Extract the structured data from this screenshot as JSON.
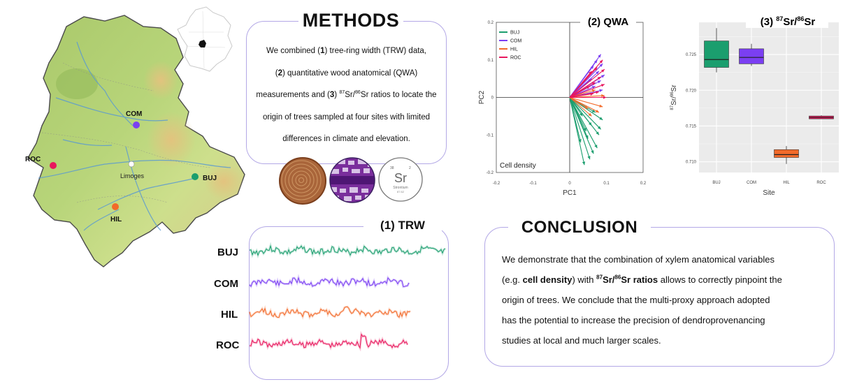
{
  "map": {
    "sites": [
      {
        "code": "COM",
        "color": "#7b3ff2"
      },
      {
        "code": "ROC",
        "color": "#e8175d"
      },
      {
        "code": "BUJ",
        "color": "#1b9e6e"
      },
      {
        "code": "HIL",
        "color": "#f26a2a"
      }
    ],
    "city": "Limoges"
  },
  "methods": {
    "heading": "METHODS",
    "line1_pre": "We combined (",
    "line1_b": "1",
    "line1_post": ") tree-ring width (TRW) data,",
    "line2_pre": "(",
    "line2_b": "2",
    "line2_post": ") quantitative wood anatomical (QWA)",
    "line3_pre": "measurements and (",
    "line3_b": "3",
    "line3_sup1": "87",
    "line3_mid": "Sr/",
    "line3_sup2": "86",
    "line3_post": "Sr ratios to locate the",
    "line4": "origin of trees sampled at four sites with limited",
    "line5": "differences in climate and elevation."
  },
  "strontium_icon": {
    "symbol": "Sr",
    "name": "Strontium",
    "num_tl": "38",
    "num_tr": "2",
    "mass": "87.62"
  },
  "trw": {
    "title": "(1) TRW",
    "labels": [
      "BUJ",
      "COM",
      "HIL",
      "ROC"
    ]
  },
  "chart_data": [
    {
      "type": "scatter",
      "title": "(2) QWA",
      "xlabel": "PC1",
      "ylabel": "PC2",
      "xlim": [
        -0.2,
        0.2
      ],
      "ylim": [
        -0.2,
        0.2
      ],
      "xticks": [
        "-0.2",
        "-0.1",
        "0",
        "0.1",
        "0.2"
      ],
      "yticks": [
        "0.2",
        "0.1",
        "0",
        "-0.1",
        "-0.2"
      ],
      "legend": [
        "BUJ",
        "COM",
        "HIL",
        "ROC"
      ],
      "legend_position": "top-left",
      "annotation": "Cell density",
      "series": [
        {
          "name": "BUJ",
          "color": "#1b9e6e",
          "vectors": [
            [
              0.04,
              -0.18
            ],
            [
              0.055,
              -0.165
            ],
            [
              0.065,
              -0.15
            ],
            [
              0.075,
              -0.135
            ],
            [
              0.03,
              -0.12
            ],
            [
              0.08,
              -0.1
            ],
            [
              0.045,
              -0.09
            ],
            [
              0.06,
              -0.075
            ],
            [
              0.09,
              -0.06
            ],
            [
              0.035,
              -0.05
            ],
            [
              0.07,
              -0.04
            ],
            [
              0.05,
              -0.11
            ],
            [
              0.085,
              -0.085
            ]
          ]
        },
        {
          "name": "COM",
          "color": "#7b3ff2",
          "vectors": [
            [
              0.085,
              0.115
            ],
            [
              0.075,
              0.1
            ],
            [
              0.09,
              0.09
            ],
            [
              0.065,
              0.085
            ],
            [
              0.08,
              0.07
            ],
            [
              0.095,
              0.06
            ],
            [
              0.06,
              0.05
            ],
            [
              0.085,
              0.045
            ],
            [
              0.07,
              0.03
            ],
            [
              0.09,
              0.02
            ]
          ]
        },
        {
          "name": "HIL",
          "color": "#f26a2a",
          "vectors": [
            [
              0.08,
              -0.04
            ],
            [
              0.06,
              -0.05
            ],
            [
              0.09,
              -0.025
            ],
            [
              0.05,
              -0.03
            ],
            [
              0.07,
              0.02
            ],
            [
              0.095,
              0.005
            ]
          ]
        },
        {
          "name": "ROC",
          "color": "#e8175d",
          "vectors": [
            [
              0.09,
              0.1
            ],
            [
              0.075,
              0.08
            ],
            [
              0.095,
              0.075
            ],
            [
              0.06,
              0.07
            ],
            [
              0.085,
              0.055
            ],
            [
              0.07,
              0.04
            ],
            [
              0.095,
              0.035
            ],
            [
              0.055,
              0.03
            ],
            [
              0.08,
              0.015
            ],
            [
              0.1,
              0.0
            ],
            [
              0.065,
              0.01
            ]
          ]
        }
      ]
    },
    {
      "type": "box",
      "title_pre": "(3) ",
      "title_sup1": "87",
      "title_mid": "Sr/",
      "title_sup2": "86",
      "title_post": "Sr",
      "xlabel": "Site",
      "ylabel_sup1": "87",
      "ylabel_mid": "Sr/",
      "ylabel_sup2": "86",
      "ylabel_post": "Sr",
      "categories": [
        "BUJ",
        "COM",
        "HIL",
        "ROC"
      ],
      "ylim": [
        0.7085,
        0.7295
      ],
      "yticks": [
        "0.725",
        "0.720",
        "0.715",
        "0.710"
      ],
      "boxes": [
        {
          "name": "BUJ",
          "color": "#1b9e6e",
          "min": 0.7225,
          "q1": 0.7232,
          "median": 0.7243,
          "q3": 0.7269,
          "max": 0.7287
        },
        {
          "name": "COM",
          "color": "#7b3ff2",
          "min": 0.7234,
          "q1": 0.7237,
          "median": 0.7246,
          "q3": 0.7258,
          "max": 0.7265
        },
        {
          "name": "HIL",
          "color": "#f26a2a",
          "min": 0.7097,
          "q1": 0.7106,
          "median": 0.711,
          "q3": 0.7117,
          "max": 0.7122
        },
        {
          "name": "ROC",
          "color": "#e8175d",
          "min": 0.716,
          "q1": 0.716,
          "median": 0.7162,
          "q3": 0.7164,
          "max": 0.7165
        }
      ],
      "grid": true
    }
  ],
  "conclusion": {
    "heading": "CONCLUSION",
    "line1": "We demonstrate that the combination of xylem anatomical variables",
    "line2_pre": "(e.g. ",
    "line2_b1": "cell density",
    "line2_mid": ") with ",
    "line2_sup1": "87",
    "line2_b2a": "Sr/",
    "line2_sup2": "86",
    "line2_b2b": "Sr ratios",
    "line2_post": " allows to correctly pinpoint the",
    "line3": "origin of trees. We conclude that the multi-proxy approach adopted",
    "line4": "has the potential to increase the precision of dendroprovenancing",
    "line5": "studies at local and much larger scales."
  }
}
